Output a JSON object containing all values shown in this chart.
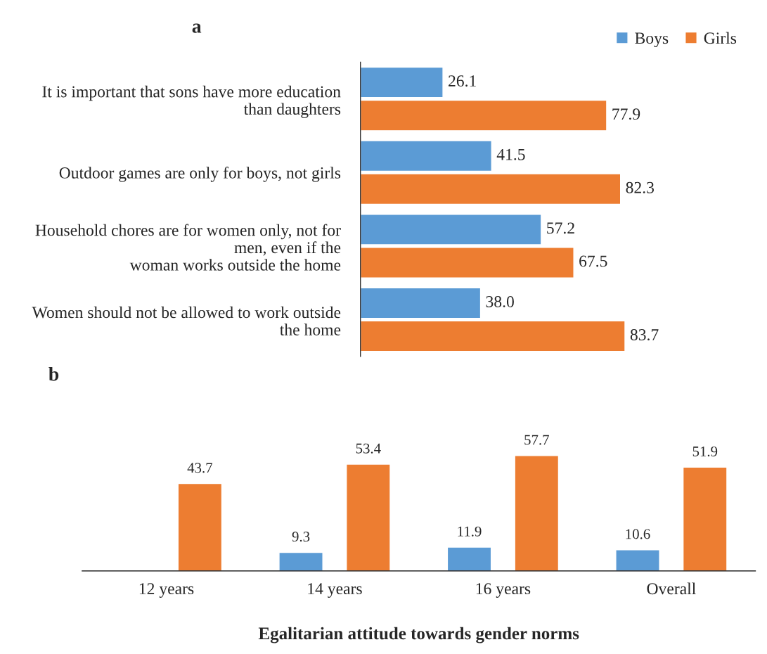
{
  "chart_data": [
    {
      "type": "bar",
      "title": "a",
      "orientation": "horizontal",
      "categories": [
        "It is important that sons have more education\nthan daughters",
        "Outdoor games are only for boys, not girls",
        "Household chores are for women only, not for\nmen, even if the\nwoman works outside the home",
        "Women should not be allowed to work outside\nthe home"
      ],
      "series": [
        {
          "name": "Boys",
          "color": "#5b9bd5",
          "values": [
            26.1,
            41.5,
            57.2,
            38.0
          ],
          "value_labels": [
            "26.1",
            "41.5",
            "57.2",
            "38.0"
          ]
        },
        {
          "name": "Girls",
          "color": "#ed7d31",
          "values": [
            77.9,
            82.3,
            67.5,
            83.7
          ],
          "value_labels": [
            "77.9",
            "82.3",
            "67.5",
            "83.7"
          ]
        }
      ],
      "legend": "top right",
      "grid": false
    },
    {
      "type": "bar",
      "title": "b",
      "xlabel": "Egalitarian attitude towards gender norms",
      "categories": [
        "12 years",
        "14 years",
        "16 years",
        "Overall"
      ],
      "series": [
        {
          "color": "#5b9bd5",
          "values": [
            null,
            9.3,
            11.9,
            10.6
          ],
          "value_labels": [
            null,
            "9.3",
            "11.9",
            "10.6"
          ]
        },
        {
          "color": "#ed7d31",
          "values": [
            43.7,
            53.4,
            57.7,
            51.9
          ],
          "value_labels": [
            "43.7",
            "53.4",
            "57.7",
            "51.9"
          ]
        }
      ],
      "legend": false,
      "grid": false
    }
  ]
}
